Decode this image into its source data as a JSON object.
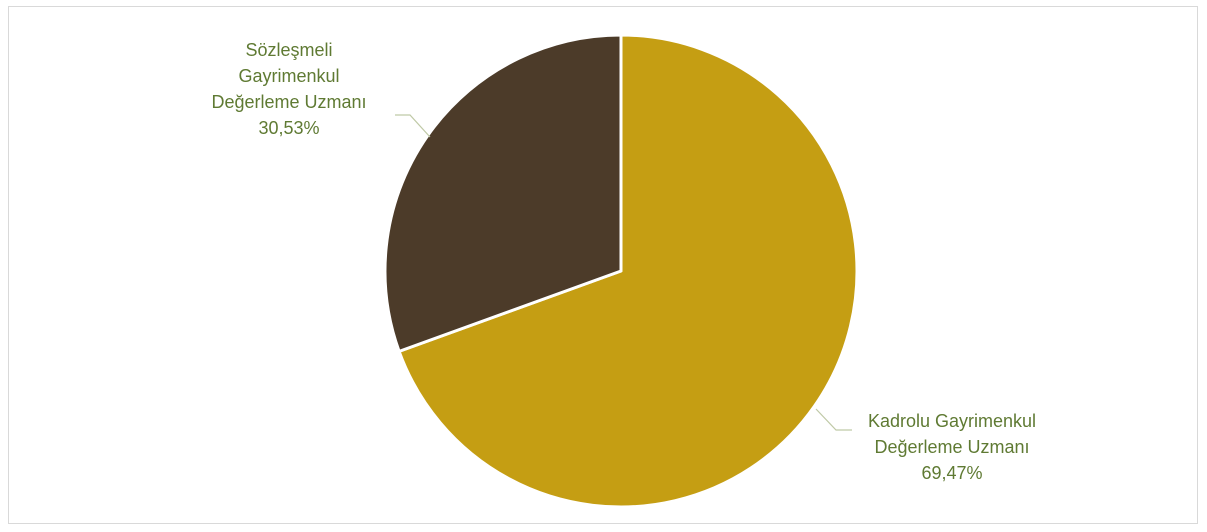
{
  "chart_data": {
    "type": "pie",
    "title": "",
    "slices": [
      {
        "label_lines": [
          "Kadrolu Gayrimenkul",
          "Değerleme Uzmanı"
        ],
        "value": 69.47,
        "value_label": "69,47%",
        "color": "#C59E13"
      },
      {
        "label_lines": [
          "Sözleşmeli",
          "Gayrimenkul",
          "Değerleme Uzmanı"
        ],
        "value": 30.53,
        "value_label": "30,53%",
        "color": "#4C3B29"
      }
    ],
    "start_angle_deg": 0,
    "direction": "clockwise",
    "label_color": "#5F7A33",
    "leader_line_color": "#BFC9A6",
    "slice_border_color": "#FFFFFF"
  }
}
